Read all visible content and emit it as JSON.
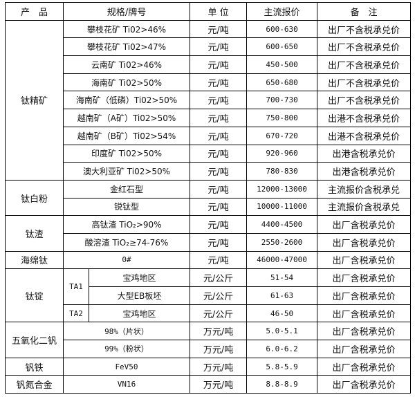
{
  "header": {
    "product": "产　品",
    "spec": "规格/牌号",
    "unit": "单 位",
    "price": "主流报价",
    "note": "备　注"
  },
  "groups": [
    {
      "product": "钛精矿",
      "rows": [
        {
          "spec": "攀枝花矿 Ti02>46%",
          "unit": "元/吨",
          "price": "600-630",
          "note": "出厂不含税承兑价"
        },
        {
          "spec": "攀枝花矿 Ti02>47%",
          "unit": "元/吨",
          "price": "600-650",
          "note": "出厂不含税承兑价"
        },
        {
          "spec": "云南矿 Ti02>46%",
          "unit": "元/吨",
          "price": "450-500",
          "note": "出厂不含税承兑价"
        },
        {
          "spec": "海南矿 Ti02>50%",
          "unit": "元/吨",
          "price": "650-680",
          "note": "出厂不含税承兑价"
        },
        {
          "spec": "海南矿（低磷）Ti02>50%",
          "unit": "元/吨",
          "price": "700-730",
          "note": "出厂不含税承兑价"
        },
        {
          "spec": "越南矿（A矿）Ti02>50%",
          "unit": "元/吨",
          "price": "750-800",
          "note": "出港不含税承兑价"
        },
        {
          "spec": "越南矿（B矿）Ti02>54%",
          "unit": "元/吨",
          "price": "670-720",
          "note": "出港不含税承兑价"
        },
        {
          "spec": "印度矿 Ti02>50%",
          "unit": "元/吨",
          "price": "920-960",
          "note": "出港含税承兑价"
        },
        {
          "spec": "澳大利亚矿 Ti02>50%",
          "unit": "元/吨",
          "price": "780-830",
          "note": "出港含税承兑价"
        }
      ]
    },
    {
      "product": "钛白粉",
      "rows": [
        {
          "spec": "金红石型",
          "unit": "元/吨",
          "price": "12000-13000",
          "note": "主流报价含税承兑"
        },
        {
          "spec": "锐钛型",
          "unit": "元/吨",
          "price": "10000-11000",
          "note": "主流报价含税承兑"
        }
      ]
    },
    {
      "product": "钛渣",
      "rows": [
        {
          "spec": "高钛渣 TiO₂>90%",
          "unit": "元/吨",
          "price": "4400-4500",
          "note": "出厂含税承兑价"
        },
        {
          "spec": "酸溶渣 TiO₂≥74-76%",
          "unit": "元/吨",
          "price": "2550-2600",
          "note": "出厂含税承兑价"
        }
      ]
    },
    {
      "product": "海绵钛",
      "rows": [
        {
          "spec": "0#",
          "unit": "元/吨",
          "price": "46000-47000",
          "note": "出厂含税承兑价"
        }
      ]
    },
    {
      "product": "钛锭",
      "rows": [
        {
          "grade": "TA1",
          "gradeSpan": 2,
          "spec": "宝鸡地区",
          "unit": "元/公斤",
          "price": "51-54",
          "note": "出厂含税承兑价"
        },
        {
          "spec": "大型EB板坯",
          "unit": "元/公斤",
          "price": "61-63",
          "note": "出厂含税承兑价"
        },
        {
          "grade": "TA2",
          "gradeSpan": 1,
          "spec": "宝鸡地区",
          "unit": "元/公斤",
          "price": "46-50",
          "note": "出厂含税承兑价"
        }
      ]
    },
    {
      "product": "五氧化二钒",
      "rows": [
        {
          "spec": "98%（片状）",
          "unit": "万元/吨",
          "price": "5.0-5.1",
          "note": "出厂含税承兑价"
        },
        {
          "spec": "99%（粉状）",
          "unit": "万元/吨",
          "price": "6.0-6.2",
          "note": "出厂含税承兑价"
        }
      ]
    },
    {
      "product": "钒铁",
      "rows": [
        {
          "spec": "FeV50",
          "unit": "万元/吨",
          "price": "5.8-5.9",
          "note": "出厂含税承兑价"
        }
      ]
    },
    {
      "product": "钒氮合金",
      "rows": [
        {
          "spec": "VN16",
          "unit": "万元/吨",
          "price": "8.8-8.9",
          "note": "出厂含税承兑价"
        }
      ]
    }
  ]
}
